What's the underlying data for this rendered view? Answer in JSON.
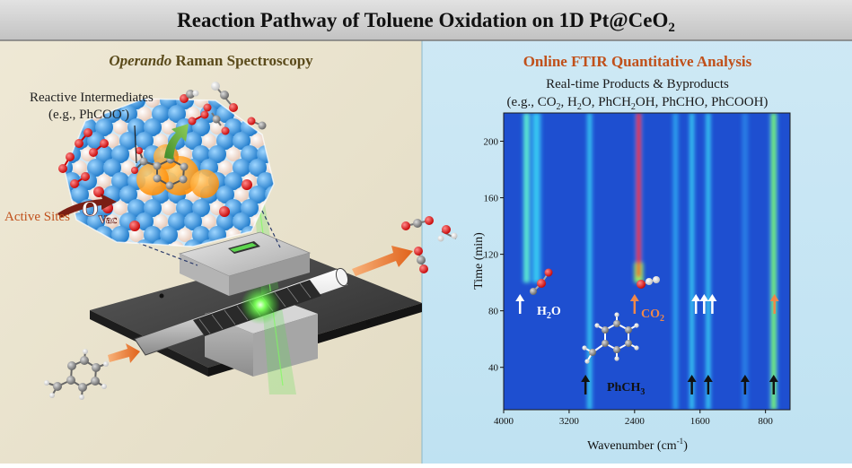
{
  "title": {
    "main": "Reaction Pathway of Toluene Oxidation on 1D Pt@CeO",
    "sub": "2"
  },
  "left_panel": {
    "heading_italic": "Operando",
    "heading_rest": " Raman Spectroscopy",
    "intermediates_label": "Reactive Intermediates",
    "intermediates_example_prefix": "(e.g., PhCOO",
    "intermediates_example_sup": "-",
    "intermediates_example_suffix": ")",
    "active_sites_label": "Active Sites",
    "ovac_main": "O",
    "ovac_sub": "Vac"
  },
  "right_panel": {
    "heading": "Online FTIR Quantitative Analysis",
    "subheading": "Real-time Products & Byproducts",
    "examples": "(e.g., CO",
    "examples_sub": "2",
    "examples_mid": ", H",
    "examples_sub2": "2",
    "examples_end": "O, PhCH",
    "examples_sub3": "2",
    "examples_tail": "OH, PhCHO, PhCOOH)",
    "label_h2o_main": "H",
    "label_h2o_sub": "2",
    "label_h2o_end": "O",
    "label_co2_main": "CO",
    "label_co2_sub": "2",
    "label_toluene_main": "PhCH",
    "label_toluene_sub": "3"
  },
  "colors": {
    "left_bg": "#e9e3cf",
    "right_bg": "#d3ecf6",
    "title_bg": "#cfcfcf",
    "accent_orange": "#c0501a",
    "map_bg": "#1e4fd0"
  },
  "chart_data": {
    "type": "heatmap",
    "xlabel": "Wavenumber (cm-1)",
    "ylabel": "Time (min)",
    "xlim": [
      4000,
      500
    ],
    "ylim": [
      10,
      220
    ],
    "x_ticks": [
      4000,
      3200,
      2400,
      1600,
      800
    ],
    "y_ticks": [
      40,
      80,
      120,
      160,
      200
    ],
    "bands": [
      {
        "center": 3720,
        "width": 60,
        "t_start": 100,
        "level": "medium-high"
      },
      {
        "center": 3600,
        "width": 80,
        "t_start": 100,
        "level": "medium"
      },
      {
        "center": 2950,
        "width": 40,
        "t_start": 10,
        "level": "medium"
      },
      {
        "center": 2350,
        "width": 50,
        "t_start": 100,
        "level": "very-high"
      },
      {
        "center": 1900,
        "width": 30,
        "t_start": 10,
        "level": "low-medium"
      },
      {
        "center": 1700,
        "width": 30,
        "t_start": 10,
        "level": "medium"
      },
      {
        "center": 1500,
        "width": 40,
        "t_start": 10,
        "level": "medium"
      },
      {
        "center": 1050,
        "width": 30,
        "t_start": 10,
        "level": "low"
      },
      {
        "center": 700,
        "width": 60,
        "t_start": 10,
        "level": "high"
      }
    ],
    "arrows_white_x": [
      3800,
      1650,
      1550,
      1450
    ],
    "arrows_orange_x": [
      2400,
      690
    ],
    "arrows_black_x": [
      3000,
      1700,
      1500,
      1050,
      700
    ]
  }
}
